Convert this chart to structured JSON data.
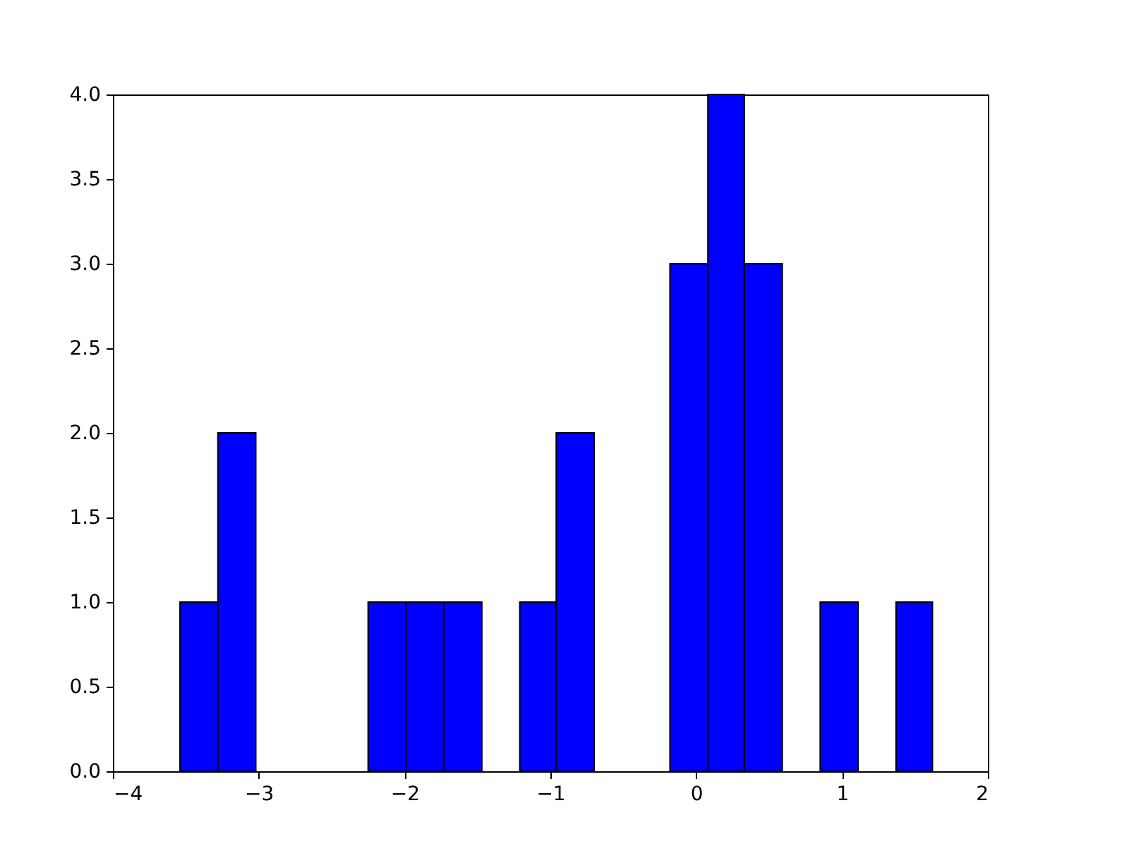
{
  "chart_data": {
    "type": "histogram",
    "bins": [
      -3.54,
      -3.28,
      -3.02,
      -2.25,
      -1.99,
      -1.73,
      -1.47,
      -1.21,
      -0.96,
      -0.7,
      -0.18,
      0.08,
      0.33,
      0.59,
      0.85,
      1.11,
      1.37,
      1.62
    ],
    "values": [
      1,
      2,
      0,
      1,
      1,
      1,
      0,
      1,
      2,
      0,
      3,
      4,
      3,
      0,
      1,
      0,
      1
    ],
    "color": "#0000ff",
    "xlim": [
      -4,
      2
    ],
    "xticks": [
      {
        "value": -4,
        "label": "−4"
      },
      {
        "value": -3,
        "label": "−3"
      },
      {
        "value": -2,
        "label": "−2"
      },
      {
        "value": -1,
        "label": "−1"
      },
      0,
      1,
      2
    ],
    "ylim": [
      0,
      4
    ],
    "yticks": [
      {
        "value": 0,
        "label": "0.0"
      },
      {
        "value": 0.5,
        "label": "0.5"
      },
      {
        "value": 1,
        "label": "1.0"
      },
      {
        "value": 1.5,
        "label": "1.5"
      },
      {
        "value": 2,
        "label": "2.0"
      },
      {
        "value": 2.5,
        "label": "2.5"
      },
      {
        "value": 3,
        "label": "3.0"
      },
      {
        "value": 3.5,
        "label": "3.5"
      },
      {
        "value": 4,
        "label": "4.0"
      }
    ],
    "grid": false
  }
}
